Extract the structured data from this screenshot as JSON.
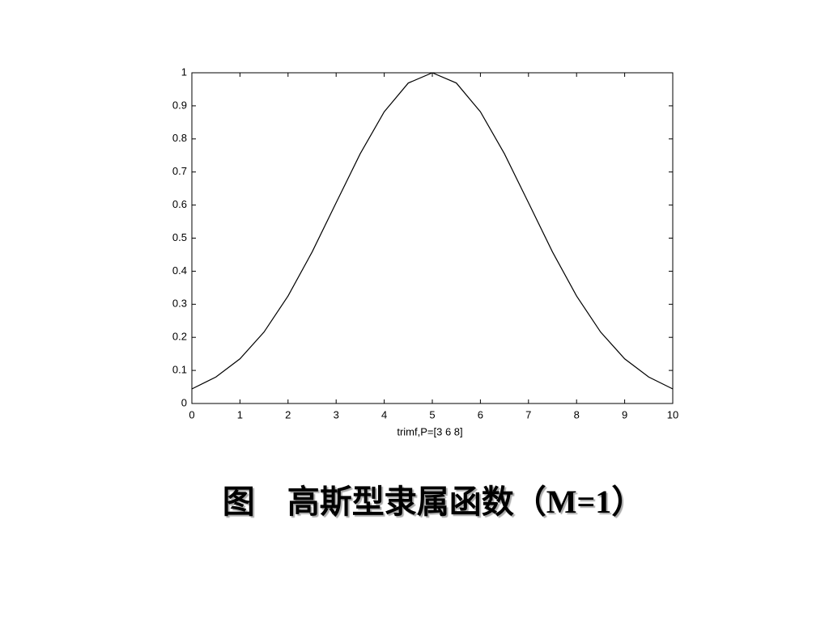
{
  "chart_data": {
    "type": "line",
    "title": "图　高斯型隶属函数（M=1）",
    "xlabel": "trimf,P=[3 6 8]",
    "x": [
      0,
      0.5,
      1,
      1.5,
      2,
      2.5,
      3,
      3.5,
      4,
      4.5,
      5,
      5.5,
      6,
      6.5,
      7,
      7.5,
      8,
      8.5,
      9,
      9.5,
      10
    ],
    "series": [
      {
        "color": "#000000",
        "values": [
          0.044,
          0.08,
          0.135,
          0.216,
          0.325,
          0.458,
          0.607,
          0.755,
          0.882,
          0.969,
          1,
          0.969,
          0.882,
          0.755,
          0.607,
          0.458,
          0.325,
          0.216,
          0.135,
          0.08,
          0.044
        ]
      }
    ],
    "xlim": [
      0,
      10
    ],
    "ylim": [
      0,
      1
    ],
    "xticks": [
      0,
      1,
      2,
      3,
      4,
      5,
      6,
      7,
      8,
      9,
      10
    ],
    "yticks": [
      0,
      0.1,
      0.2,
      0.3,
      0.4,
      0.5,
      0.6,
      0.7,
      0.8,
      0.9,
      1
    ],
    "grid": false
  }
}
